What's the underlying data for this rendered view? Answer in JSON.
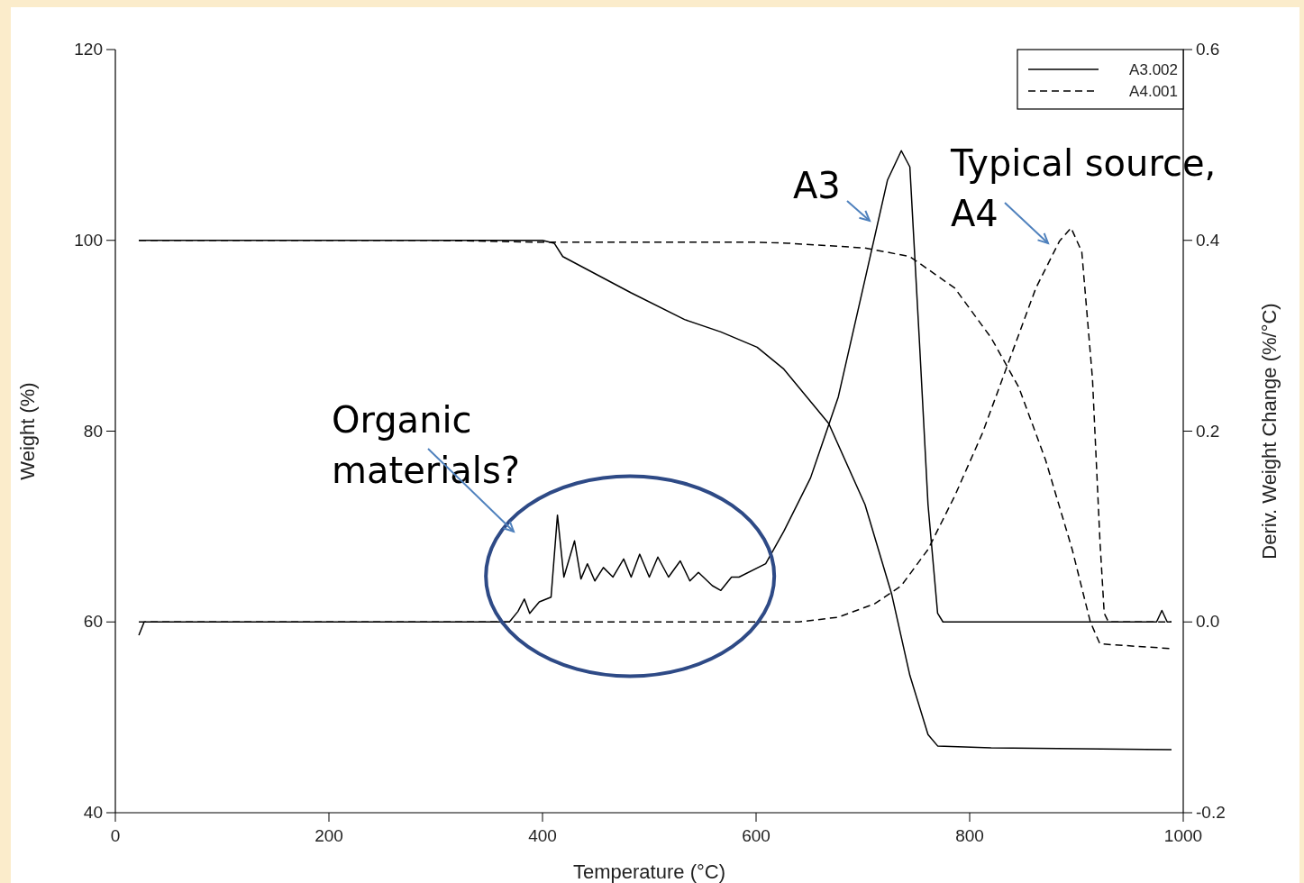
{
  "chart_data": {
    "type": "line",
    "xlabel": "Temperature (°C)",
    "ylabel": "Weight (%)",
    "y2label": "Deriv. Weight Change (%/°C)",
    "xlim": [
      0,
      1000
    ],
    "xticks": [
      0,
      200,
      400,
      600,
      800,
      1000
    ],
    "ylim": [
      40,
      120
    ],
    "yticks": [
      40,
      60,
      80,
      100,
      120
    ],
    "y2lim": [
      -0.2,
      0.6
    ],
    "y2ticks": [
      {
        "value": -0.2,
        "label": "-0.2"
      },
      {
        "value": 0,
        "label": "0.0"
      },
      {
        "value": 0.2,
        "label": "0.2"
      },
      {
        "value": 0.4,
        "label": "0.4"
      },
      {
        "value": 0.6,
        "label": "0.6"
      }
    ],
    "grid": false,
    "legend": "top right",
    "marker": "none",
    "series": [
      {
        "name": "A3.002",
        "color": "#000000",
        "line_style": "solid",
        "x": [
          22,
          200,
          400,
          411,
          419,
          483,
          533,
          567,
          601,
          626,
          668,
          702,
          727,
          744,
          761,
          770,
          820,
          989
        ],
        "values": [
          100,
          100,
          100,
          99.7,
          98.3,
          94.5,
          91.7,
          90.4,
          88.8,
          86.5,
          80.8,
          72.3,
          62.9,
          54.4,
          48.2,
          47.0,
          46.8,
          46.6
        ]
      },
      {
        "name": "A4.001",
        "color": "#000000",
        "line_style": "dashed",
        "x": [
          22,
          300,
          400,
          600,
          630,
          702,
          744,
          786,
          820,
          846,
          871,
          896,
          913,
          922,
          989
        ],
        "values": [
          100,
          100,
          99.8,
          99.8,
          99.7,
          99.2,
          98.3,
          95,
          89.8,
          84.6,
          77,
          67.6,
          60,
          57.7,
          57.2
        ]
      },
      {
        "color": "#000000",
        "line_style": "solid",
        "axis": "y2",
        "x": [
          22,
          27,
          200,
          369,
          377,
          383,
          388,
          397,
          408,
          414,
          420,
          430,
          436,
          442,
          449,
          457,
          466,
          476,
          483,
          491,
          500,
          508,
          518,
          529,
          538,
          546,
          559,
          567,
          577,
          584,
          609,
          626,
          651,
          677,
          702,
          723,
          736,
          744,
          753,
          761,
          770,
          775,
          900,
          975,
          980,
          985,
          989
        ],
        "values": [
          -0.014,
          0,
          0,
          0,
          0.011,
          0.024,
          0.009,
          0.021,
          0.026,
          0.112,
          0.047,
          0.085,
          0.045,
          0.061,
          0.043,
          0.057,
          0.047,
          0.066,
          0.047,
          0.071,
          0.047,
          0.068,
          0.047,
          0.064,
          0.043,
          0.052,
          0.038,
          0.033,
          0.047,
          0.047,
          0.061,
          0.095,
          0.151,
          0.236,
          0.359,
          0.463,
          0.494,
          0.477,
          0.293,
          0.123,
          0.009,
          0,
          0,
          0,
          0.012,
          0,
          0
        ]
      },
      {
        "color": "#000000",
        "line_style": "dashed",
        "axis": "y2",
        "x": [
          22,
          400,
          640,
          677,
          711,
          736,
          761,
          786,
          812,
          837,
          862,
          884,
          895,
          905,
          915,
          922,
          926,
          930,
          989
        ],
        "values": [
          0,
          0,
          0,
          0.005,
          0.019,
          0.038,
          0.076,
          0.132,
          0.198,
          0.274,
          0.35,
          0.399,
          0.413,
          0.388,
          0.255,
          0.085,
          0.009,
          0,
          0
        ]
      }
    ],
    "annotations": [
      "Organic materials?",
      "A3",
      "Typical source, A4"
    ]
  }
}
